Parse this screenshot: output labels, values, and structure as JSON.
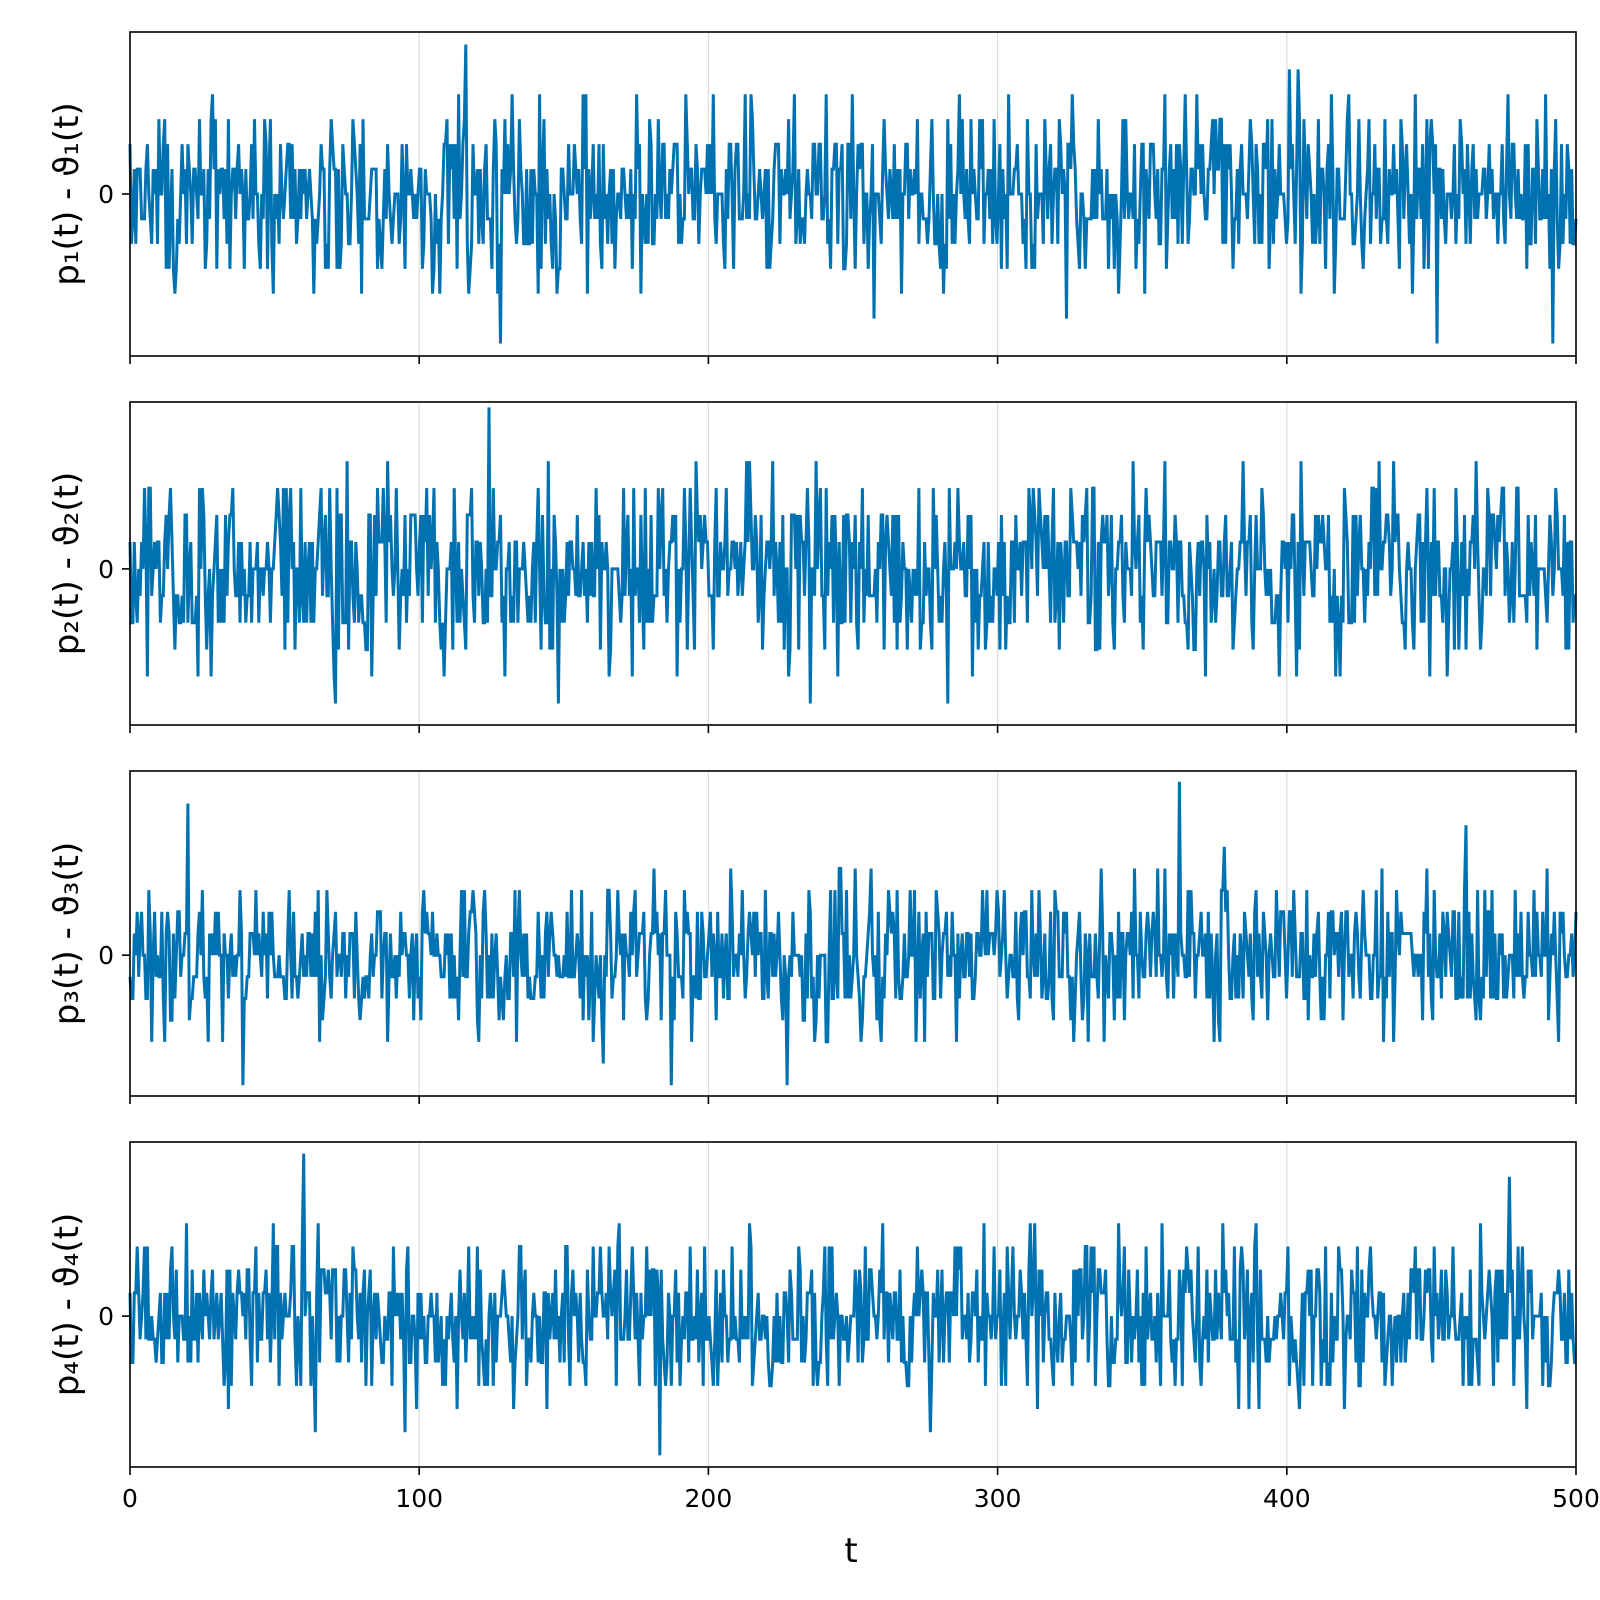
{
  "chart_data": {
    "type": "line",
    "layout": "4 stacked panels sharing x axis",
    "grid": "vertical gridlines only",
    "line_color": "#0072b2",
    "x_label": "t",
    "x_range": [
      0,
      500
    ],
    "x_ticks": [
      "0",
      "100",
      "200",
      "300",
      "400",
      "500"
    ],
    "panels": [
      {
        "ylabel": "p₁(t) - ϑ₁(t)",
        "y_ticks": [
          "0"
        ],
        "y_range": [
          -6.5,
          6.5
        ],
        "max_value": 6,
        "min_value": -6,
        "peaks": [
          [
            116,
            6
          ],
          [
            128,
            -6
          ],
          [
            401,
            5
          ],
          [
            404,
            5
          ],
          [
            452,
            -6
          ],
          [
            492,
            -6
          ]
        ]
      },
      {
        "ylabel": "p₂(t) - ϑ₂(t)",
        "y_ticks": [
          "0"
        ],
        "y_range": [
          -5.8,
          6.2
        ],
        "max_value": 6,
        "min_value": -5,
        "peaks": [
          [
            124,
            6
          ],
          [
            71,
            -5
          ],
          [
            148,
            -5
          ],
          [
            235,
            -5
          ],
          [
            283,
            -5
          ]
        ]
      },
      {
        "ylabel": "p₃(t) - ϑ₃(t)",
        "y_ticks": [
          "0"
        ],
        "y_range": [
          -6.5,
          8.5
        ],
        "max_value": 8,
        "min_value": -6,
        "peaks": [
          [
            20,
            7
          ],
          [
            363,
            8
          ],
          [
            462,
            6
          ],
          [
            39,
            -6
          ],
          [
            187,
            -6
          ],
          [
            227,
            -6
          ]
        ]
      },
      {
        "ylabel": "p₄(t) - ϑ₄(t)",
        "y_ticks": [
          "0"
        ],
        "y_range": [
          -6.5,
          7.5
        ],
        "max_value": 7,
        "min_value": -6,
        "peaks": [
          [
            60,
            7
          ],
          [
            477,
            6
          ],
          [
            183,
            -6
          ],
          [
            64,
            -5
          ],
          [
            95,
            -5
          ],
          [
            277,
            -5
          ]
        ]
      }
    ]
  }
}
